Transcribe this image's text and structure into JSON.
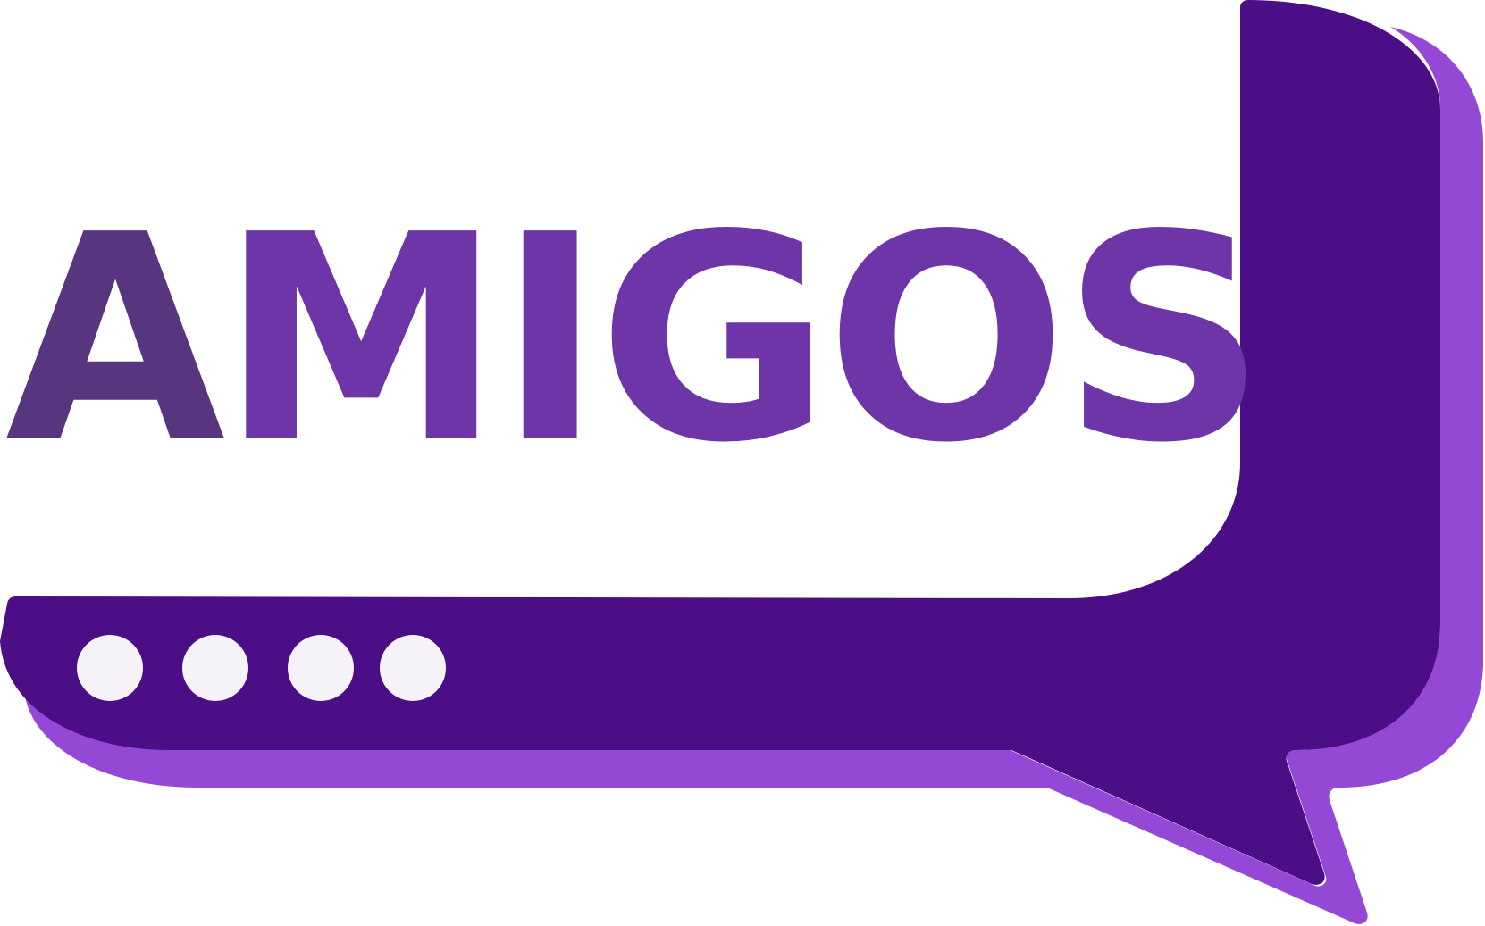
{
  "logo": {
    "wordmark_first_letter": "A",
    "wordmark_rest": "MIGOS",
    "icon": "speech-bubble-icon",
    "dots_icon": "typing-dots-icon",
    "colors": {
      "first_letter": "#57357F",
      "letters": "#6D35A8",
      "bubble_front": "#4C0E86",
      "bubble_shadow": "#9348D6",
      "dots": "#F5F3F8",
      "background": "#FFFFFF"
    }
  }
}
